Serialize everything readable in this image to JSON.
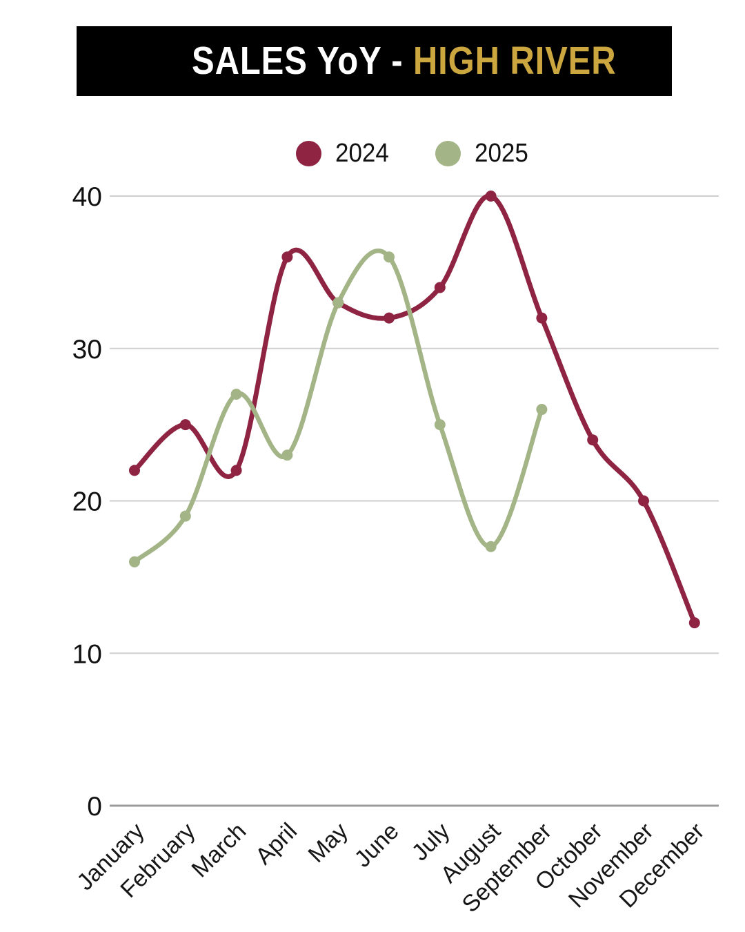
{
  "title": {
    "part1": "SALES YoY - ",
    "part2": "HIGH RIVER"
  },
  "theme": {
    "banner_bg": "#000000",
    "title_primary_color": "#FFFFFF",
    "title_accent_color": "#CCA63E",
    "background": "#FFFFFF",
    "gridline_color": "#CFCFCF",
    "zero_line_color": "#9B9B9B",
    "tick_text_color": "#161616"
  },
  "chart_data": {
    "type": "line",
    "title": "SALES YoY - HIGH RIVER",
    "line_style": "smooth",
    "grid": "horizontal",
    "legend_position": "top-center",
    "categories": [
      "January",
      "February",
      "March",
      "April",
      "May",
      "June",
      "July",
      "August",
      "September",
      "October",
      "November",
      "December"
    ],
    "series": [
      {
        "name": "2024",
        "color": "#8E2342",
        "values": [
          22,
          25,
          22,
          36,
          33,
          32,
          34,
          40,
          32,
          24,
          20,
          12
        ]
      },
      {
        "name": "2025",
        "color": "#A3B487",
        "values": [
          16,
          19,
          27,
          23,
          33,
          36,
          25,
          17,
          26
        ]
      }
    ],
    "y_ticks": [
      0,
      10,
      20,
      30,
      40
    ],
    "ylim": [
      0,
      40
    ],
    "xlabel": "",
    "ylabel": ""
  }
}
